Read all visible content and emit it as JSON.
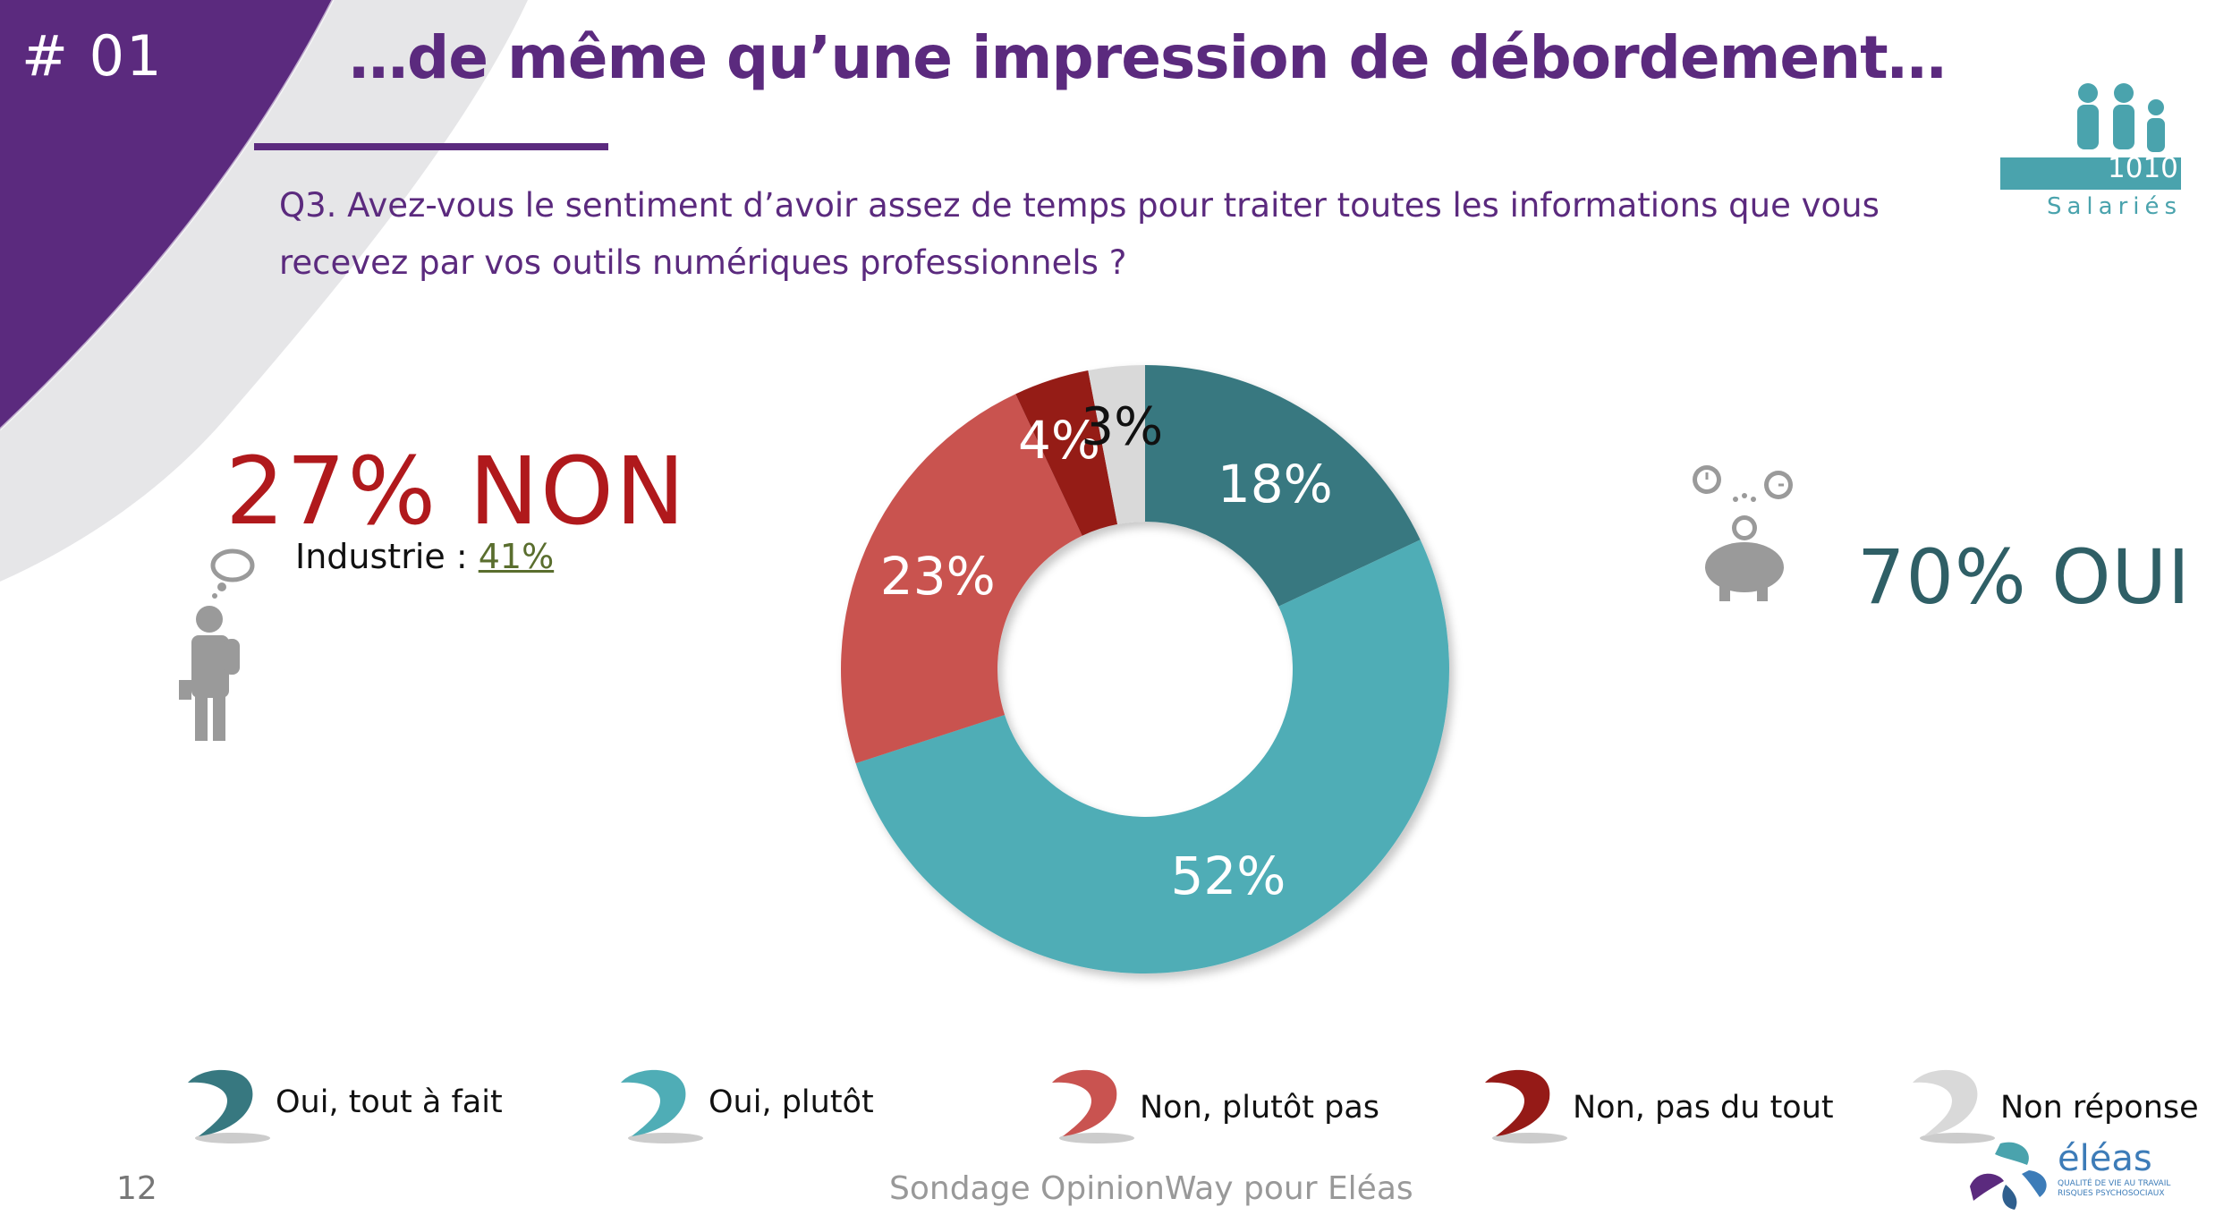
{
  "header": {
    "slide_number": "# 01",
    "title": "…de même qu’une impression de débordement…"
  },
  "question": "Q3. Avez-vous le sentiment d’avoir assez de temps pour traiter toutes les informations que vous recevez par vos outils numériques professionnels ?",
  "left_panel": {
    "headline": "27% NON",
    "industry_label": "Industrie : ",
    "industry_value": "41%"
  },
  "right_panel": {
    "headline": "70% OUI"
  },
  "logo_1010": {
    "number": "1010",
    "word": "Salariés"
  },
  "colors": {
    "purple": "#5b2a7e",
    "oui_tout_a_fait": "#377880",
    "oui_plutot": "#4fadb6",
    "non_plutot_pas": "#c95350",
    "non_pas_du_tout": "#951a17",
    "non_reponse": "#d9d9d9"
  },
  "chart_data": {
    "type": "pie",
    "variant": "donut",
    "title": "",
    "categories": [
      "Oui, tout à fait",
      "Oui, plutôt",
      "Non, plutôt pas",
      "Non, pas du tout",
      "Non réponse"
    ],
    "values": [
      18,
      52,
      23,
      4,
      3
    ],
    "labels": [
      "18%",
      "52%",
      "23%",
      "4%",
      "3%"
    ],
    "colors": [
      "#377880",
      "#4fadb6",
      "#c95350",
      "#951a17",
      "#d9d9d9"
    ],
    "label_colors": [
      "#ffffff",
      "#ffffff",
      "#ffffff",
      "#ffffff",
      "#111111"
    ],
    "legend_position": "bottom"
  },
  "footer": {
    "page_number": "12",
    "source": "Sondage OpinionWay pour Eléas",
    "logo_word": "éléas",
    "logo_tagline_1": "QUALITÉ DE VIE AU TRAVAIL",
    "logo_tagline_2": "RISQUES PSYCHOSOCIAUX"
  }
}
